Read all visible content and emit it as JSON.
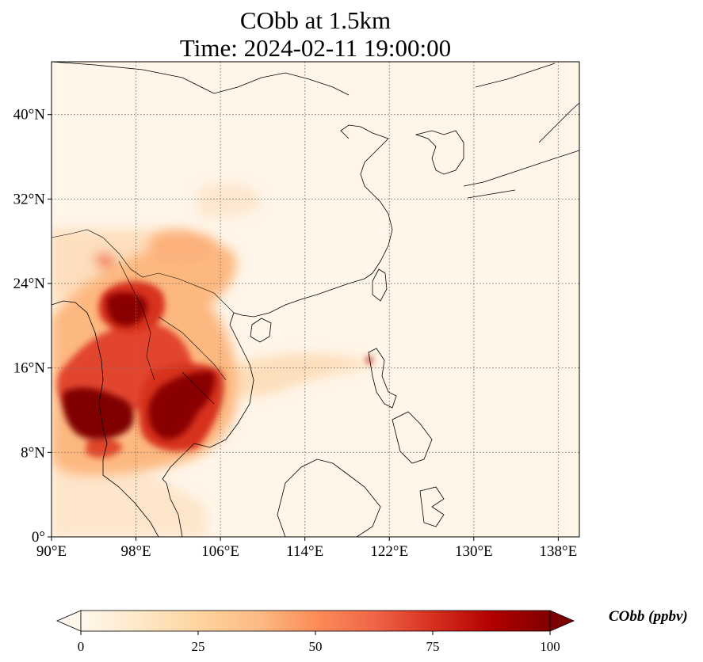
{
  "title": {
    "line1": "CObb at 1.5km",
    "line2": "Time: 2024-02-11 19:00:00"
  },
  "map": {
    "lon_range": [
      90,
      140
    ],
    "lat_range": [
      0,
      45
    ],
    "x_ticks": [
      "90°E",
      "98°E",
      "106°E",
      "114°E",
      "122°E",
      "130°E",
      "138°E"
    ],
    "x_tick_values": [
      90,
      98,
      106,
      114,
      122,
      130,
      138
    ],
    "y_ticks": [
      "0°",
      "8°N",
      "16°N",
      "24°N",
      "32°N",
      "40°N"
    ],
    "y_tick_values": [
      0,
      8,
      16,
      24,
      32,
      40
    ],
    "gridlines": true,
    "gridline_style": "dotted",
    "coastlines": true,
    "borders": true
  },
  "colorbar": {
    "label": "CObb (ppbv)",
    "ticks": [
      "0",
      "25",
      "50",
      "75",
      "100"
    ],
    "tick_values": [
      0,
      25,
      50,
      75,
      100
    ],
    "range": [
      0,
      100
    ],
    "colormap": "OrRd",
    "colors": [
      "#fff7ec",
      "#fee8c8",
      "#fdd49e",
      "#fdbb84",
      "#fc8d59",
      "#ef6548",
      "#d7301f",
      "#b30000",
      "#7f0000"
    ],
    "extend": "both",
    "orientation": "horizontal"
  }
}
